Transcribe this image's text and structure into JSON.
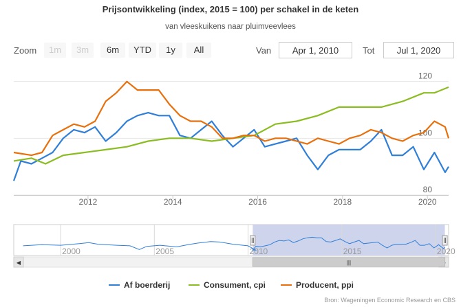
{
  "title": "Prijsontwikkeling (index, 2015 = 100) per schakel in de keten",
  "subtitle": "van vleeskuikens naar pluimveevlees",
  "toolbar": {
    "zoom_label": "Zoom",
    "buttons": [
      {
        "label": "1m",
        "enabled": false
      },
      {
        "label": "3m",
        "enabled": false
      },
      {
        "label": "6m",
        "enabled": true
      },
      {
        "label": "YTD",
        "enabled": true
      },
      {
        "label": "1y",
        "enabled": true
      },
      {
        "label": "All",
        "enabled": true
      }
    ],
    "from_label": "Van",
    "from_value": "Apr 1, 2010",
    "to_label": "Tot",
    "to_value": "Jul 1, 2020"
  },
  "navigator": {
    "year_labels": [
      "2000",
      "2005",
      "2010",
      "2015",
      "2020"
    ],
    "scroll_left_arrow": "◀",
    "scroll_right_arrow": "▶",
    "scroll_grip": "|||"
  },
  "credits": "Bron: Wageningen Economic Research en CBS",
  "colors": {
    "af_boerderij": "#2f7ed8",
    "consument": "#8bbc21",
    "producent": "#e8700c",
    "grid": "#e6e6e6",
    "navigator_mask": "#c5cde8"
  },
  "chart_data": {
    "type": "line",
    "title": "Prijsontwikkeling (index, 2015 = 100) per schakel in de keten",
    "subtitle": "van vleeskuikens naar pluimveevlees",
    "x_range": [
      "2010-04-01",
      "2020-07-01"
    ],
    "x_ticks": [
      "2012",
      "2014",
      "2016",
      "2018",
      "2020"
    ],
    "y_range": [
      80,
      125
    ],
    "y_ticks": [
      "80",
      "100",
      "120"
    ],
    "grid": true,
    "legend_position": "bottom",
    "series": [
      {
        "name": "Af boerderij",
        "color": "#2f7ed8",
        "points": [
          [
            "2010-04",
            85
          ],
          [
            "2010-06",
            92
          ],
          [
            "2010-09",
            91
          ],
          [
            "2010-12",
            93
          ],
          [
            "2011-03",
            95
          ],
          [
            "2011-06",
            100
          ],
          [
            "2011-09",
            103
          ],
          [
            "2011-12",
            102
          ],
          [
            "2012-03",
            104
          ],
          [
            "2012-06",
            99
          ],
          [
            "2012-09",
            102
          ],
          [
            "2012-12",
            106
          ],
          [
            "2013-03",
            108
          ],
          [
            "2013-06",
            109
          ],
          [
            "2013-09",
            108
          ],
          [
            "2013-12",
            108
          ],
          [
            "2014-03",
            101
          ],
          [
            "2014-06",
            100
          ],
          [
            "2014-09",
            103
          ],
          [
            "2014-12",
            106
          ],
          [
            "2015-03",
            101
          ],
          [
            "2015-06",
            97
          ],
          [
            "2015-09",
            100
          ],
          [
            "2015-12",
            103
          ],
          [
            "2016-03",
            97
          ],
          [
            "2016-06",
            98
          ],
          [
            "2016-09",
            99
          ],
          [
            "2016-12",
            100
          ],
          [
            "2017-03",
            94
          ],
          [
            "2017-06",
            89
          ],
          [
            "2017-09",
            94
          ],
          [
            "2017-12",
            96
          ],
          [
            "2018-03",
            96
          ],
          [
            "2018-06",
            96
          ],
          [
            "2018-09",
            99
          ],
          [
            "2018-12",
            103
          ],
          [
            "2019-03",
            94
          ],
          [
            "2019-06",
            94
          ],
          [
            "2019-09",
            97
          ],
          [
            "2019-12",
            89
          ],
          [
            "2020-03",
            95
          ],
          [
            "2020-06",
            88
          ],
          [
            "2020-07",
            90
          ]
        ]
      },
      {
        "name": "Consument, cpi",
        "color": "#8bbc21",
        "points": [
          [
            "2010-04",
            92
          ],
          [
            "2010-09",
            93
          ],
          [
            "2011-01",
            91
          ],
          [
            "2011-06",
            94
          ],
          [
            "2011-12",
            95
          ],
          [
            "2012-06",
            96
          ],
          [
            "2012-12",
            97
          ],
          [
            "2013-06",
            99
          ],
          [
            "2013-12",
            100
          ],
          [
            "2014-06",
            100
          ],
          [
            "2014-12",
            99
          ],
          [
            "2015-06",
            100
          ],
          [
            "2015-12",
            101
          ],
          [
            "2016-06",
            105
          ],
          [
            "2016-12",
            106
          ],
          [
            "2017-06",
            108
          ],
          [
            "2017-12",
            111
          ],
          [
            "2018-06",
            111
          ],
          [
            "2018-12",
            111
          ],
          [
            "2019-06",
            113
          ],
          [
            "2019-12",
            116
          ],
          [
            "2020-03",
            116
          ],
          [
            "2020-07",
            118
          ]
        ]
      },
      {
        "name": "Producent, ppi",
        "color": "#e8700c",
        "points": [
          [
            "2010-04",
            95
          ],
          [
            "2010-09",
            94
          ],
          [
            "2010-12",
            95
          ],
          [
            "2011-03",
            101
          ],
          [
            "2011-06",
            103
          ],
          [
            "2011-09",
            105
          ],
          [
            "2011-12",
            104
          ],
          [
            "2012-03",
            106
          ],
          [
            "2012-06",
            113
          ],
          [
            "2012-09",
            116
          ],
          [
            "2012-12",
            120
          ],
          [
            "2013-03",
            117
          ],
          [
            "2013-06",
            117
          ],
          [
            "2013-09",
            117
          ],
          [
            "2013-12",
            112
          ],
          [
            "2014-03",
            108
          ],
          [
            "2014-06",
            106
          ],
          [
            "2014-09",
            106
          ],
          [
            "2014-12",
            104
          ],
          [
            "2015-03",
            100
          ],
          [
            "2015-06",
            100
          ],
          [
            "2015-09",
            101
          ],
          [
            "2015-12",
            101
          ],
          [
            "2016-03",
            99
          ],
          [
            "2016-06",
            100
          ],
          [
            "2016-09",
            100
          ],
          [
            "2016-12",
            99
          ],
          [
            "2017-03",
            98
          ],
          [
            "2017-06",
            100
          ],
          [
            "2017-09",
            99
          ],
          [
            "2017-12",
            98
          ],
          [
            "2018-03",
            100
          ],
          [
            "2018-06",
            101
          ],
          [
            "2018-09",
            103
          ],
          [
            "2018-12",
            102
          ],
          [
            "2019-03",
            100
          ],
          [
            "2019-06",
            99
          ],
          [
            "2019-09",
            101
          ],
          [
            "2019-12",
            102
          ],
          [
            "2020-03",
            106
          ],
          [
            "2020-06",
            104
          ],
          [
            "2020-07",
            100
          ]
        ]
      }
    ]
  }
}
